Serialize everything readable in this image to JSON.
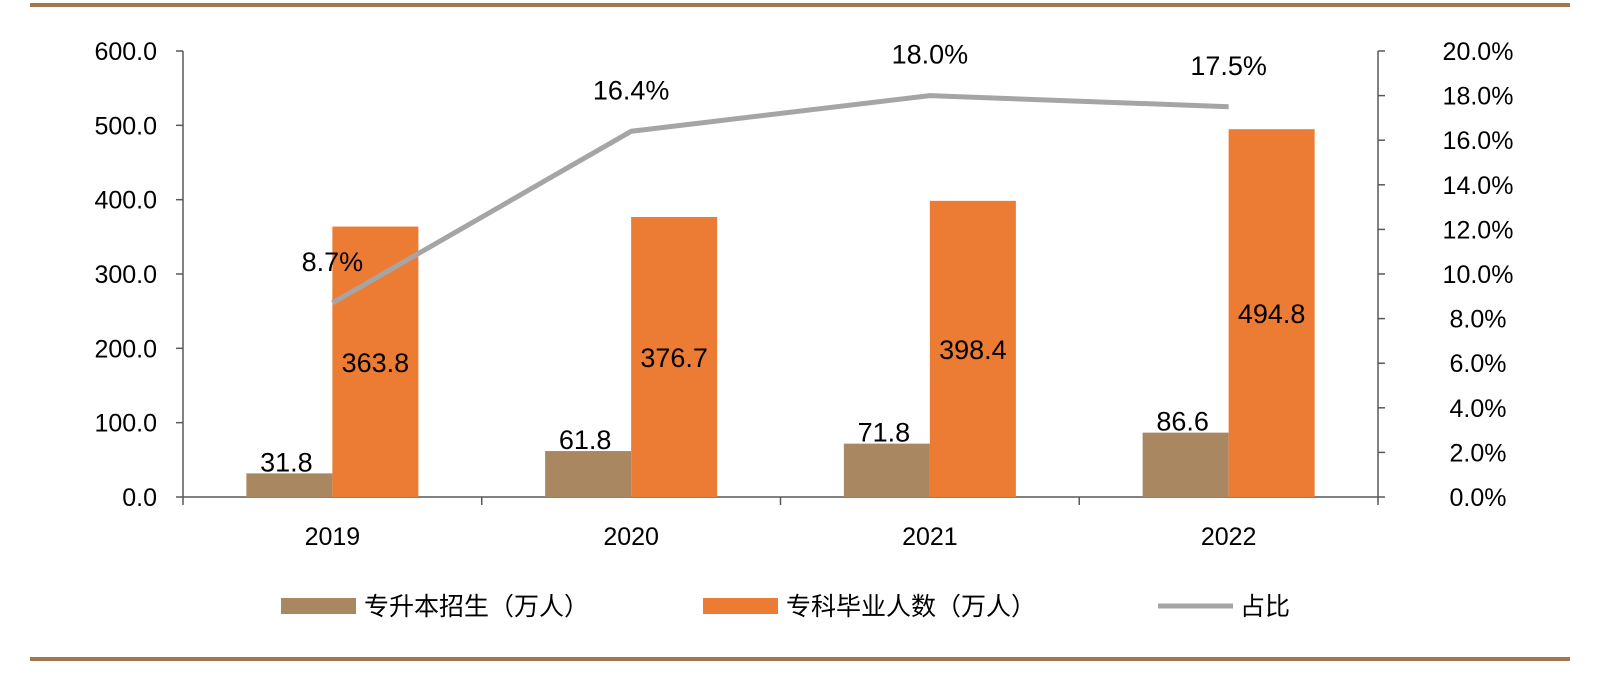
{
  "colors": {
    "enrollment": "#a98760",
    "graduates": "#ec7b34",
    "ratio": "#a5a5a5",
    "rule": "#a0784e",
    "axis": "#595959"
  },
  "chart_data": {
    "type": "bar",
    "categories": [
      "2019",
      "2020",
      "2021",
      "2022"
    ],
    "series": [
      {
        "name": "专升本招生（万人）",
        "type": "bar",
        "axis": "left",
        "values": [
          31.8,
          61.8,
          71.8,
          86.6
        ],
        "labels": [
          "31.8",
          "61.8",
          "71.8",
          "86.6"
        ]
      },
      {
        "name": "专科毕业人数（万人）",
        "type": "bar",
        "axis": "left",
        "values": [
          363.8,
          376.7,
          398.4,
          494.8
        ],
        "labels": [
          "363.8",
          "376.7",
          "398.4",
          "494.8"
        ]
      },
      {
        "name": "占比",
        "type": "line",
        "axis": "right",
        "values": [
          8.7,
          16.4,
          18.0,
          17.5
        ],
        "labels": [
          "8.7%",
          "16.4%",
          "18.0%",
          "17.5%"
        ]
      }
    ],
    "left_axis": {
      "ylim": [
        0,
        600
      ],
      "ticks": [
        "0.0",
        "100.0",
        "200.0",
        "300.0",
        "400.0",
        "500.0",
        "600.0"
      ]
    },
    "right_axis": {
      "ylim": [
        0,
        20
      ],
      "ticks": [
        "0.0%",
        "2.0%",
        "4.0%",
        "6.0%",
        "8.0%",
        "10.0%",
        "12.0%",
        "14.0%",
        "16.0%",
        "18.0%",
        "20.0%"
      ]
    },
    "grid": false,
    "legend_position": "bottom"
  }
}
